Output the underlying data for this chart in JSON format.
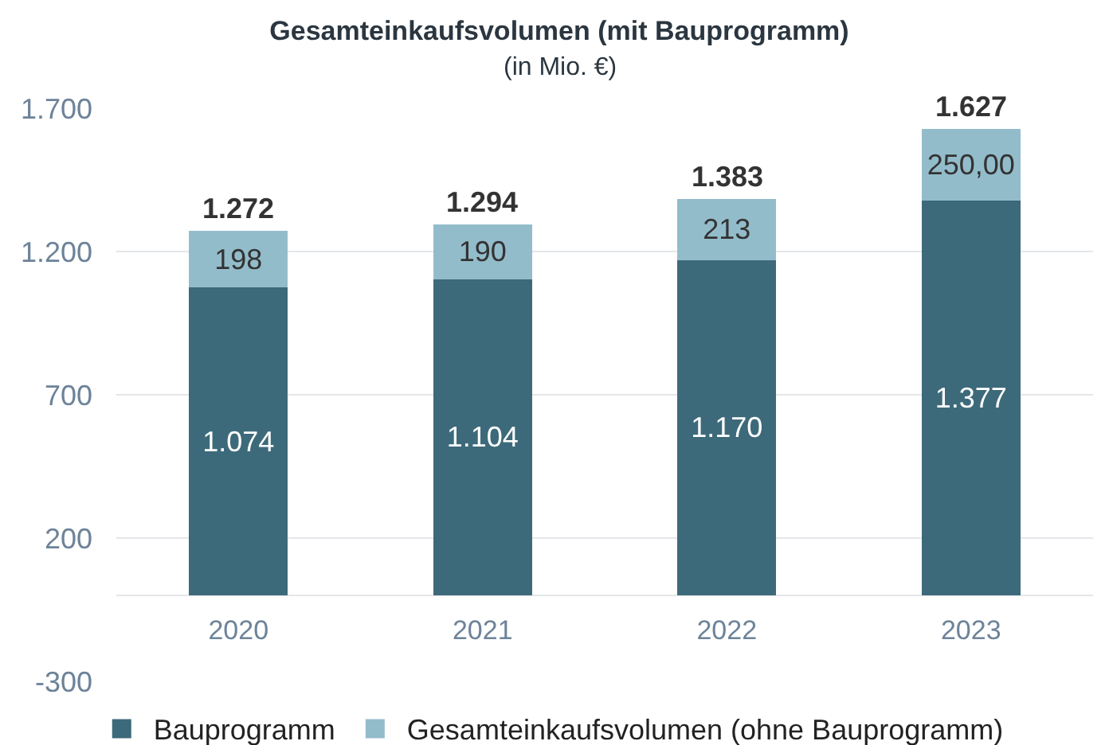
{
  "chart_data": {
    "type": "bar",
    "title": "Gesamteinkaufsvolumen (mit Bauprogramm)",
    "subtitle": "(in Mio. €)",
    "categories": [
      "2020",
      "2021",
      "2022",
      "2023"
    ],
    "stacked": true,
    "series": [
      {
        "name": "Bauprogramm",
        "color": "#3d6a7a",
        "values": [
          1074,
          1104,
          1170,
          1377
        ],
        "value_labels": [
          "1.074",
          "1.104",
          "1.170",
          "1.377"
        ]
      },
      {
        "name": "Gesamteinkaufsvolumen (ohne Bauprogramm)",
        "color": "#93bccb",
        "values": [
          198,
          190,
          213,
          250
        ],
        "value_labels": [
          "198",
          "190",
          "213",
          "250,00"
        ]
      }
    ],
    "totals": [
      "1.272",
      "1.294",
      "1.383",
      "1.627"
    ],
    "ylim": [
      -300,
      1700
    ],
    "yticks": [
      -300,
      200,
      700,
      {
        "value": 1200,
        "label": "1.200"
      },
      {
        "value": 1700,
        "label": "1.700"
      }
    ],
    "grid": "y",
    "legend": "bottom"
  }
}
